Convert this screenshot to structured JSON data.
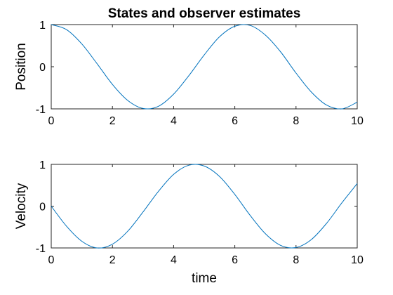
{
  "chart_data": [
    {
      "type": "line",
      "title": "States and observer estimates",
      "xlabel": "",
      "ylabel": "Position",
      "xlim": [
        0,
        10
      ],
      "ylim": [
        -1,
        1
      ],
      "xticks": [
        "0",
        "2",
        "4",
        "6",
        "8",
        "10"
      ],
      "yticks": [
        "-1",
        "0",
        "1"
      ],
      "grid": false,
      "series": [
        {
          "color": "#0072BD",
          "x": [
            0,
            0.5,
            1,
            1.5,
            2,
            2.5,
            3,
            3.5,
            4,
            4.5,
            5,
            5.5,
            6,
            6.5,
            7,
            7.5,
            8,
            8.5,
            9,
            9.5,
            10
          ],
          "y": [
            1.0,
            0.88,
            0.54,
            0.07,
            -0.42,
            -0.8,
            -0.99,
            -0.94,
            -0.65,
            -0.21,
            0.28,
            0.71,
            0.96,
            0.98,
            0.75,
            0.35,
            -0.15,
            -0.6,
            -0.91,
            -1.0,
            -0.84
          ]
        }
      ]
    },
    {
      "type": "line",
      "title": "",
      "xlabel": "time",
      "ylabel": "Velocity",
      "xlim": [
        0,
        10
      ],
      "ylim": [
        -1,
        1
      ],
      "xticks": [
        "0",
        "2",
        "4",
        "6",
        "8",
        "10"
      ],
      "yticks": [
        "-1",
        "0",
        "1"
      ],
      "grid": false,
      "series": [
        {
          "color": "#0072BD",
          "x": [
            0,
            0.5,
            1,
            1.5,
            2,
            2.5,
            3,
            3.5,
            4,
            4.5,
            5,
            5.5,
            6,
            6.5,
            7,
            7.5,
            8,
            8.5,
            9,
            9.5,
            10
          ],
          "y": [
            0.0,
            -0.48,
            -0.84,
            -1.0,
            -0.91,
            -0.6,
            -0.14,
            0.35,
            0.76,
            0.98,
            0.96,
            0.71,
            0.28,
            -0.22,
            -0.66,
            -0.94,
            -0.99,
            -0.8,
            -0.41,
            0.08,
            0.54
          ]
        }
      ]
    }
  ]
}
